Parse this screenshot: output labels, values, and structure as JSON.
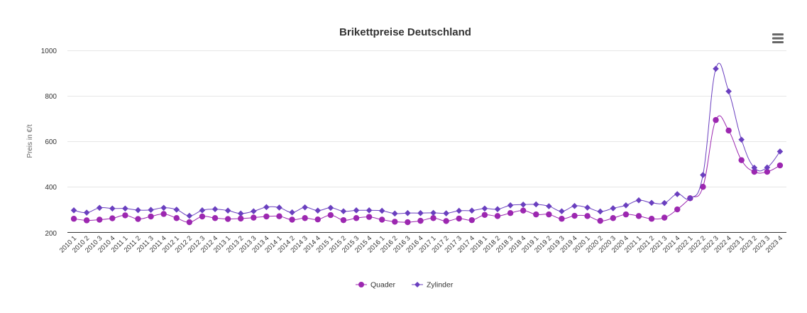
{
  "menu": {
    "icon": "hamburger-menu-icon"
  },
  "chart_data": {
    "type": "line",
    "title": "Brikettpreise Deutschland",
    "xlabel": "",
    "ylabel": "Preis in €/t",
    "ylim": [
      200,
      1000
    ],
    "yticks": [
      "200",
      "400",
      "600",
      "800",
      "1000"
    ],
    "ytick_values": [
      200,
      400,
      600,
      800,
      1000
    ],
    "grid": true,
    "legend_position": "bottom-center",
    "categories": [
      "2010 1",
      "2010 2",
      "2010 3",
      "2010 4",
      "2011 1",
      "2011 2",
      "2011 3",
      "2011 4",
      "2012 1",
      "2012 2",
      "2012 3",
      "2012 4",
      "2013 1",
      "2013 2",
      "2013 3",
      "2013 4",
      "2014 1",
      "2014 2",
      "2014 3",
      "2014 4",
      "2015 1",
      "2015 2",
      "2015 3",
      "2015 4",
      "2016 1",
      "2016 2",
      "2016 3",
      "2016 4",
      "2017 1",
      "2017 2",
      "2017 3",
      "2017 4",
      "2018 1",
      "2018 2",
      "2018 3",
      "2018 4",
      "2019 1",
      "2019 2",
      "2019 3",
      "2019 4",
      "2020 1",
      "2020 2",
      "2020 3",
      "2020 4",
      "2021 1",
      "2021 2",
      "2021 3",
      "2021 4",
      "2022 1",
      "2022 2",
      "2022 3",
      "2022 4",
      "2023 1",
      "2023 2",
      "2023 3",
      "2023 4"
    ],
    "series": [
      {
        "name": "Quader",
        "marker": "circle",
        "color": "#9c27b0",
        "values": [
          260,
          253,
          256,
          262,
          275,
          259,
          270,
          281,
          263,
          245,
          270,
          263,
          259,
          261,
          265,
          270,
          271,
          256,
          263,
          257,
          276,
          254,
          263,
          268,
          256,
          247,
          245,
          251,
          263,
          250,
          261,
          254,
          277,
          272,
          285,
          296,
          279,
          279,
          260,
          273,
          272,
          251,
          263,
          279,
          272,
          260,
          265,
          301,
          350,
          400,
          693,
          647,
          517,
          466,
          466,
          494
        ]
      },
      {
        "name": "Zylinder",
        "marker": "diamond",
        "color": "#6a3fbf",
        "values": [
          297,
          287,
          308,
          305,
          305,
          298,
          299,
          308,
          300,
          273,
          297,
          302,
          296,
          283,
          293,
          311,
          309,
          288,
          310,
          296,
          308,
          293,
          297,
          297,
          295,
          283,
          285,
          285,
          286,
          284,
          295,
          296,
          305,
          302,
          319,
          322,
          323,
          315,
          293,
          316,
          309,
          292,
          306,
          319,
          341,
          330,
          329,
          368,
          350,
          452,
          918,
          819,
          607,
          484,
          485,
          555
        ]
      }
    ]
  }
}
